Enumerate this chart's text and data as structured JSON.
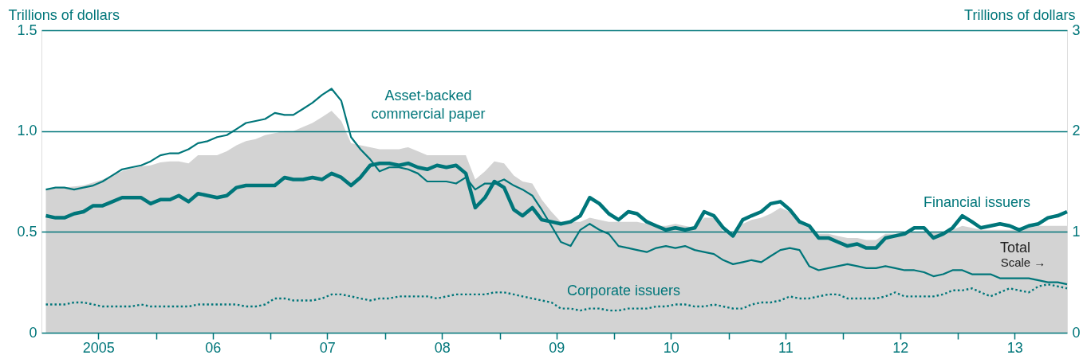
{
  "chart_data": {
    "type": "line",
    "ylabel": "Trillions of dollars",
    "y2label": "Trillions of dollars",
    "x": [
      "2005-01-15",
      "2005-02-15",
      "2005-03-15",
      "2005-04-15",
      "2005-05-15",
      "2005-06-15",
      "2005-07-15",
      "2005-08-15",
      "2005-09-15",
      "2005-10-15",
      "2005-11-15",
      "2005-12-15",
      "2006-01-15",
      "2006-02-15",
      "2006-03-15",
      "2006-04-15",
      "2006-05-15",
      "2006-06-15",
      "2006-07-15",
      "2006-08-15",
      "2006-09-15",
      "2006-10-15",
      "2006-11-15",
      "2006-12-15",
      "2007-01-15",
      "2007-02-15",
      "2007-03-15",
      "2007-04-15",
      "2007-05-15",
      "2007-06-15",
      "2007-07-15",
      "2007-08-15",
      "2007-09-15",
      "2007-10-15",
      "2007-11-15",
      "2007-12-15",
      "2008-01-15",
      "2008-02-15",
      "2008-03-15",
      "2008-04-15",
      "2008-05-15",
      "2008-06-15",
      "2008-07-15",
      "2008-08-15",
      "2008-09-15",
      "2008-10-15",
      "2008-11-15",
      "2008-12-15",
      "2009-01-15",
      "2009-02-15",
      "2009-03-15",
      "2009-04-15",
      "2009-05-15",
      "2009-06-15",
      "2009-07-15",
      "2009-08-15",
      "2009-09-15",
      "2009-10-15",
      "2009-11-15",
      "2009-12-15",
      "2010-01-15",
      "2010-02-15",
      "2010-03-15",
      "2010-04-15",
      "2010-05-15",
      "2010-06-15",
      "2010-07-15",
      "2010-08-15",
      "2010-09-15",
      "2010-10-15",
      "2010-11-15",
      "2010-12-15",
      "2011-01-15",
      "2011-02-15",
      "2011-03-15",
      "2011-04-15",
      "2011-05-15",
      "2011-06-15",
      "2011-07-15",
      "2011-08-15",
      "2011-09-15",
      "2011-10-15",
      "2011-11-15",
      "2011-12-15",
      "2012-01-15",
      "2012-02-15",
      "2012-03-15",
      "2012-04-15",
      "2012-05-15",
      "2012-06-15",
      "2012-07-15",
      "2012-08-15",
      "2012-09-15",
      "2012-10-15",
      "2012-11-15",
      "2012-12-15",
      "2013-01-15",
      "2013-02-15",
      "2013-03-15",
      "2013-04-15",
      "2013-05-15",
      "2013-06-15",
      "2013-07-15",
      "2013-08-15",
      "2013-09-15",
      "2013-10-15",
      "2013-11-15",
      "2013-12-15"
    ],
    "xlim": [
      "2005-01-01",
      "2013-12-15"
    ],
    "xticks": [
      {
        "value": "2005-07-01",
        "label": "2005"
      },
      {
        "value": "2006-01-01",
        "label": null
      },
      {
        "value": "2006-07-01",
        "label": "06"
      },
      {
        "value": "2007-01-01",
        "label": null
      },
      {
        "value": "2007-07-01",
        "label": "07"
      },
      {
        "value": "2008-01-01",
        "label": null
      },
      {
        "value": "2008-07-01",
        "label": "08"
      },
      {
        "value": "2009-01-01",
        "label": null
      },
      {
        "value": "2009-07-01",
        "label": "09"
      },
      {
        "value": "2010-01-01",
        "label": null
      },
      {
        "value": "2010-07-01",
        "label": "10"
      },
      {
        "value": "2011-01-01",
        "label": null
      },
      {
        "value": "2011-07-01",
        "label": "11"
      },
      {
        "value": "2012-01-01",
        "label": null
      },
      {
        "value": "2012-07-01",
        "label": "12"
      },
      {
        "value": "2013-01-01",
        "label": null
      },
      {
        "value": "2013-07-01",
        "label": "13"
      }
    ],
    "ylim": [
      0,
      1.5
    ],
    "yticks": [
      0,
      0.5,
      {
        "value": 1,
        "label": "1.0"
      },
      1.5
    ],
    "y2lim": [
      0,
      3
    ],
    "y2ticks": [
      0,
      1,
      2,
      3
    ],
    "grid": "y",
    "annotations": [
      "Scale →"
    ],
    "series": [
      {
        "name": "Total",
        "type": "area",
        "axis": "y2",
        "color": "#d3d3d3",
        "values": [
          1.42,
          1.43,
          1.44,
          1.45,
          1.46,
          1.49,
          1.52,
          1.56,
          1.6,
          1.63,
          1.65,
          1.66,
          1.69,
          1.7,
          1.7,
          1.68,
          1.76,
          1.76,
          1.76,
          1.8,
          1.86,
          1.9,
          1.92,
          1.96,
          1.98,
          2.0,
          2.0,
          2.04,
          2.08,
          2.14,
          2.2,
          2.1,
          1.88,
          1.86,
          1.84,
          1.82,
          1.82,
          1.82,
          1.84,
          1.8,
          1.76,
          1.76,
          1.76,
          1.76,
          1.76,
          1.52,
          1.6,
          1.7,
          1.68,
          1.56,
          1.5,
          1.48,
          1.32,
          1.2,
          1.1,
          1.1,
          1.1,
          1.14,
          1.12,
          1.1,
          1.1,
          1.1,
          1.1,
          1.08,
          1.06,
          1.06,
          1.08,
          1.06,
          1.04,
          1.14,
          1.14,
          1.0,
          0.98,
          1.08,
          1.12,
          1.14,
          1.18,
          1.24,
          1.2,
          1.08,
          1.04,
          0.98,
          0.98,
          0.96,
          0.94,
          0.94,
          0.92,
          0.92,
          0.98,
          0.98,
          1.0,
          1.0,
          1.0,
          1.0,
          1.0,
          1.02,
          1.06,
          1.04,
          1.02,
          1.02,
          1.02,
          1.02,
          1.02,
          1.04,
          1.06,
          1.06,
          1.06,
          1.06
        ]
      },
      {
        "name": "Asset-backed\ncommercial paper",
        "color": "#00767a",
        "line_style": "solid",
        "values": [
          0.71,
          0.72,
          0.72,
          0.71,
          0.72,
          0.73,
          0.75,
          0.78,
          0.81,
          0.82,
          0.83,
          0.85,
          0.88,
          0.89,
          0.89,
          0.91,
          0.94,
          0.95,
          0.97,
          0.98,
          1.01,
          1.04,
          1.05,
          1.06,
          1.09,
          1.08,
          1.08,
          1.11,
          1.14,
          1.18,
          1.21,
          1.15,
          0.97,
          0.91,
          0.86,
          0.8,
          0.82,
          0.82,
          0.81,
          0.79,
          0.75,
          0.75,
          0.75,
          0.74,
          0.77,
          0.71,
          0.74,
          0.74,
          0.76,
          0.73,
          0.71,
          0.68,
          0.61,
          0.53,
          0.45,
          0.43,
          0.51,
          0.54,
          0.51,
          0.49,
          0.43,
          0.42,
          0.41,
          0.4,
          0.42,
          0.43,
          0.42,
          0.43,
          0.41,
          0.4,
          0.39,
          0.36,
          0.34,
          0.35,
          0.36,
          0.35,
          0.38,
          0.41,
          0.42,
          0.41,
          0.33,
          0.31,
          0.32,
          0.33,
          0.34,
          0.33,
          0.32,
          0.32,
          0.33,
          0.32,
          0.31,
          0.31,
          0.3,
          0.28,
          0.29,
          0.31,
          0.31,
          0.29,
          0.29,
          0.29,
          0.27,
          0.27,
          0.27,
          0.27,
          0.26,
          0.25,
          0.25,
          0.24
        ]
      },
      {
        "name": "Financial issuers",
        "color": "#00767a",
        "line_style": "solid",
        "values": [
          0.58,
          0.57,
          0.57,
          0.59,
          0.6,
          0.63,
          0.63,
          0.65,
          0.67,
          0.67,
          0.67,
          0.64,
          0.66,
          0.66,
          0.68,
          0.65,
          0.69,
          0.68,
          0.67,
          0.68,
          0.72,
          0.73,
          0.73,
          0.73,
          0.73,
          0.77,
          0.76,
          0.76,
          0.77,
          0.76,
          0.79,
          0.77,
          0.73,
          0.77,
          0.83,
          0.84,
          0.84,
          0.83,
          0.84,
          0.82,
          0.81,
          0.83,
          0.82,
          0.83,
          0.79,
          0.62,
          0.67,
          0.75,
          0.72,
          0.61,
          0.58,
          0.62,
          0.56,
          0.55,
          0.54,
          0.55,
          0.58,
          0.67,
          0.64,
          0.59,
          0.56,
          0.6,
          0.59,
          0.55,
          0.53,
          0.51,
          0.52,
          0.51,
          0.52,
          0.6,
          0.58,
          0.52,
          0.48,
          0.56,
          0.58,
          0.6,
          0.64,
          0.65,
          0.61,
          0.55,
          0.53,
          0.47,
          0.47,
          0.45,
          0.43,
          0.44,
          0.42,
          0.42,
          0.47,
          0.48,
          0.49,
          0.52,
          0.52,
          0.47,
          0.49,
          0.52,
          0.58,
          0.55,
          0.52,
          0.53,
          0.54,
          0.53,
          0.51,
          0.53,
          0.54,
          0.57,
          0.58,
          0.6
        ]
      },
      {
        "name": "Corporate issuers",
        "color": "#00767a",
        "line_style": "dotted",
        "values": [
          0.14,
          0.14,
          0.14,
          0.15,
          0.15,
          0.14,
          0.13,
          0.13,
          0.13,
          0.13,
          0.14,
          0.13,
          0.13,
          0.13,
          0.13,
          0.13,
          0.14,
          0.14,
          0.14,
          0.14,
          0.14,
          0.13,
          0.13,
          0.14,
          0.17,
          0.17,
          0.16,
          0.16,
          0.16,
          0.17,
          0.19,
          0.19,
          0.18,
          0.17,
          0.16,
          0.17,
          0.17,
          0.18,
          0.18,
          0.18,
          0.18,
          0.17,
          0.18,
          0.19,
          0.19,
          0.19,
          0.19,
          0.2,
          0.2,
          0.19,
          0.18,
          0.17,
          0.16,
          0.15,
          0.12,
          0.12,
          0.11,
          0.12,
          0.12,
          0.11,
          0.11,
          0.12,
          0.12,
          0.12,
          0.13,
          0.13,
          0.14,
          0.14,
          0.13,
          0.13,
          0.14,
          0.13,
          0.12,
          0.12,
          0.14,
          0.15,
          0.15,
          0.16,
          0.18,
          0.17,
          0.17,
          0.18,
          0.19,
          0.19,
          0.17,
          0.17,
          0.17,
          0.17,
          0.18,
          0.2,
          0.18,
          0.18,
          0.18,
          0.18,
          0.19,
          0.21,
          0.21,
          0.22,
          0.2,
          0.18,
          0.2,
          0.22,
          0.21,
          0.2,
          0.23,
          0.24,
          0.23,
          0.22
        ]
      }
    ]
  }
}
